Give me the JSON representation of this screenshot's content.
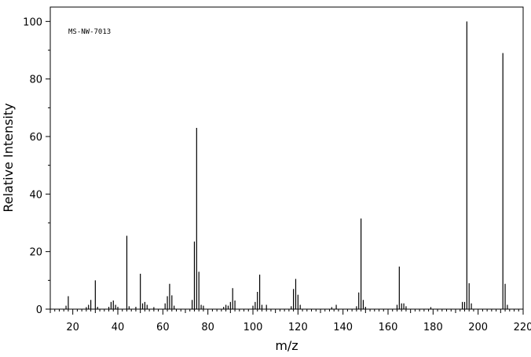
{
  "chart_data": {
    "type": "bar",
    "title": "",
    "annotation": "MS-NW-7013",
    "xlabel": "m/z",
    "ylabel": "Relative Intensity",
    "xlim": [
      10,
      220
    ],
    "ylim": [
      0,
      105
    ],
    "x_ticks": [
      20,
      40,
      60,
      80,
      100,
      120,
      140,
      160,
      180,
      200,
      220
    ],
    "y_ticks": [
      0,
      20,
      40,
      60,
      80,
      100
    ],
    "grid": false,
    "legend": "none",
    "peaks": [
      {
        "x": 17,
        "y": 1.2
      },
      {
        "x": 18,
        "y": 4.5
      },
      {
        "x": 26,
        "y": 0.7
      },
      {
        "x": 27,
        "y": 1.5
      },
      {
        "x": 28,
        "y": 3.2
      },
      {
        "x": 30,
        "y": 10.0
      },
      {
        "x": 31,
        "y": 0.8
      },
      {
        "x": 36,
        "y": 0.8
      },
      {
        "x": 37,
        "y": 2.5
      },
      {
        "x": 38,
        "y": 3.0
      },
      {
        "x": 39,
        "y": 1.5
      },
      {
        "x": 40,
        "y": 0.8
      },
      {
        "x": 44,
        "y": 25.5
      },
      {
        "x": 45,
        "y": 1.0
      },
      {
        "x": 48,
        "y": 0.8
      },
      {
        "x": 50,
        "y": 12.3
      },
      {
        "x": 51,
        "y": 2.0
      },
      {
        "x": 52,
        "y": 2.5
      },
      {
        "x": 53,
        "y": 1.5
      },
      {
        "x": 56,
        "y": 0.7
      },
      {
        "x": 61,
        "y": 2.0
      },
      {
        "x": 62,
        "y": 4.5
      },
      {
        "x": 63,
        "y": 8.8
      },
      {
        "x": 64,
        "y": 4.8
      },
      {
        "x": 65,
        "y": 1.2
      },
      {
        "x": 73,
        "y": 3.2
      },
      {
        "x": 74,
        "y": 23.5
      },
      {
        "x": 75,
        "y": 63.0
      },
      {
        "x": 76,
        "y": 13.0
      },
      {
        "x": 77,
        "y": 1.5
      },
      {
        "x": 78,
        "y": 1.2
      },
      {
        "x": 87,
        "y": 0.8
      },
      {
        "x": 88,
        "y": 1.5
      },
      {
        "x": 89,
        "y": 1.2
      },
      {
        "x": 90,
        "y": 2.5
      },
      {
        "x": 91,
        "y": 7.3
      },
      {
        "x": 92,
        "y": 3.0
      },
      {
        "x": 100,
        "y": 1.2
      },
      {
        "x": 101,
        "y": 2.5
      },
      {
        "x": 102,
        "y": 6.0
      },
      {
        "x": 103,
        "y": 12.0
      },
      {
        "x": 104,
        "y": 1.5
      },
      {
        "x": 106,
        "y": 1.5
      },
      {
        "x": 117,
        "y": 1.0
      },
      {
        "x": 118,
        "y": 7.0
      },
      {
        "x": 119,
        "y": 10.5
      },
      {
        "x": 120,
        "y": 5.0
      },
      {
        "x": 121,
        "y": 1.5
      },
      {
        "x": 135,
        "y": 0.7
      },
      {
        "x": 137,
        "y": 1.5
      },
      {
        "x": 146,
        "y": 1.0
      },
      {
        "x": 147,
        "y": 5.8
      },
      {
        "x": 148,
        "y": 31.5
      },
      {
        "x": 149,
        "y": 3.2
      },
      {
        "x": 150,
        "y": 0.8
      },
      {
        "x": 164,
        "y": 1.5
      },
      {
        "x": 165,
        "y": 14.8
      },
      {
        "x": 166,
        "y": 2.0
      },
      {
        "x": 167,
        "y": 2.0
      },
      {
        "x": 168,
        "y": 1.0
      },
      {
        "x": 179,
        "y": 0.7
      },
      {
        "x": 193,
        "y": 2.5
      },
      {
        "x": 194,
        "y": 2.5
      },
      {
        "x": 195,
        "y": 100.0
      },
      {
        "x": 196,
        "y": 9.0
      },
      {
        "x": 197,
        "y": 2.0
      },
      {
        "x": 211,
        "y": 89.0
      },
      {
        "x": 212,
        "y": 8.8
      },
      {
        "x": 213,
        "y": 1.5
      }
    ]
  }
}
